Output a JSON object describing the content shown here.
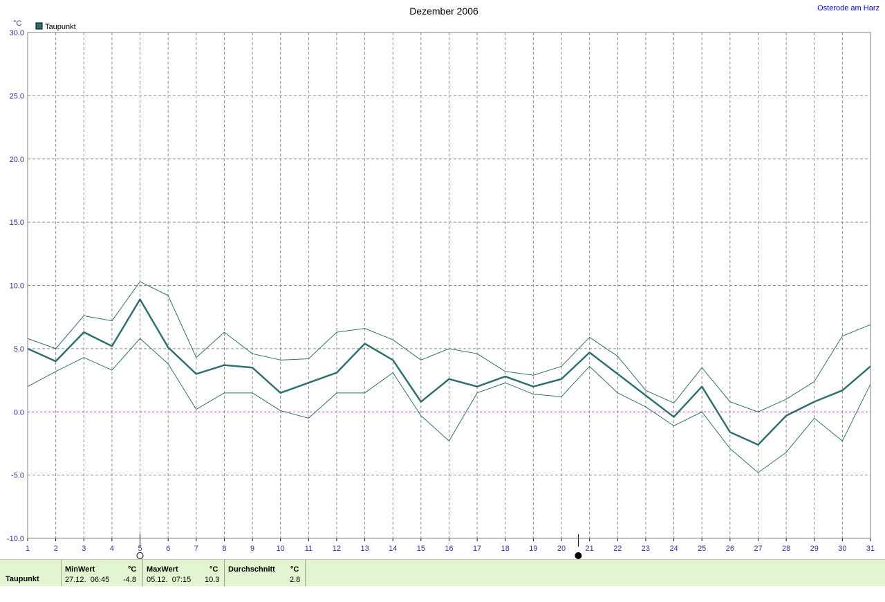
{
  "station": "Osterode am Harz",
  "chart_data": {
    "type": "line",
    "title": "Dezember 2006",
    "ylabel": "°C",
    "ylim": [
      -10,
      30
    ],
    "y_ticks": [
      "30.0",
      "25.0",
      "20.0",
      "15.0",
      "10.0",
      "5.0",
      "0.0",
      "-5.0",
      "-10.0"
    ],
    "x": [
      1,
      2,
      3,
      4,
      5,
      6,
      7,
      8,
      9,
      10,
      11,
      12,
      13,
      14,
      15,
      16,
      17,
      18,
      19,
      20,
      21,
      22,
      23,
      24,
      25,
      26,
      27,
      28,
      29,
      30,
      31
    ],
    "x_tick_labels": [
      "1",
      "2",
      "3",
      "4",
      "5",
      "6",
      "7",
      "8",
      "9",
      "10",
      "11",
      "12",
      "13",
      "14",
      "15",
      "16",
      "17",
      "18",
      "19",
      "20",
      "21",
      "22",
      "23",
      "24",
      "25",
      "26",
      "27",
      "28",
      "29",
      "30",
      "31"
    ],
    "grid": true,
    "legend": "top-left",
    "legend_label": "Taupunkt",
    "series": [
      {
        "name": "Taupunkt",
        "role": "mean",
        "color": "#2f6f6f",
        "values": [
          5.0,
          4.0,
          6.3,
          5.2,
          8.9,
          5.1,
          3.0,
          3.7,
          3.5,
          1.5,
          2.3,
          3.1,
          5.4,
          4.1,
          0.8,
          2.6,
          2.0,
          2.8,
          2.0,
          2.6,
          4.7,
          3.0,
          1.3,
          -0.4,
          2.0,
          -1.6,
          -2.6,
          -0.3,
          0.8,
          1.7,
          3.6
        ]
      },
      {
        "role": "max",
        "color": "#2f6f6f",
        "values": [
          5.8,
          5.0,
          7.6,
          7.2,
          10.3,
          9.2,
          4.3,
          6.3,
          4.6,
          4.1,
          4.2,
          6.3,
          6.6,
          5.7,
          4.1,
          5.0,
          4.6,
          3.2,
          2.9,
          3.6,
          5.9,
          4.4,
          1.7,
          0.7,
          3.5,
          0.8,
          0.0,
          1.0,
          2.4,
          6.0,
          6.9
        ]
      },
      {
        "role": "min",
        "color": "#2f6f6f",
        "values": [
          2.0,
          3.2,
          4.3,
          3.3,
          5.8,
          3.8,
          0.2,
          1.5,
          1.5,
          0.1,
          -0.5,
          1.5,
          1.5,
          3.1,
          -0.3,
          -2.3,
          1.5,
          2.3,
          1.4,
          1.2,
          3.6,
          1.5,
          0.4,
          -1.1,
          0.0,
          -2.9,
          -4.8,
          -3.2,
          -0.5,
          -2.3,
          2.2
        ]
      }
    ],
    "zero_line_color": "#cc33cc",
    "markers": [
      {
        "at_day": 5,
        "style": "open"
      },
      {
        "at_day": 20.6,
        "style": "filled"
      }
    ]
  },
  "stats": {
    "row_label": "Taupunkt",
    "min_header": "MinWert",
    "min_unit": "°C",
    "min_date": "27.12.  06:45",
    "min_value": "-4.8",
    "max_header": "MaxWert",
    "max_unit": "°C",
    "max_date": "05.12.  07:15",
    "max_value": "10.3",
    "avg_header": "Durchschnitt",
    "avg_unit": "°C",
    "avg_value": "2.8"
  }
}
